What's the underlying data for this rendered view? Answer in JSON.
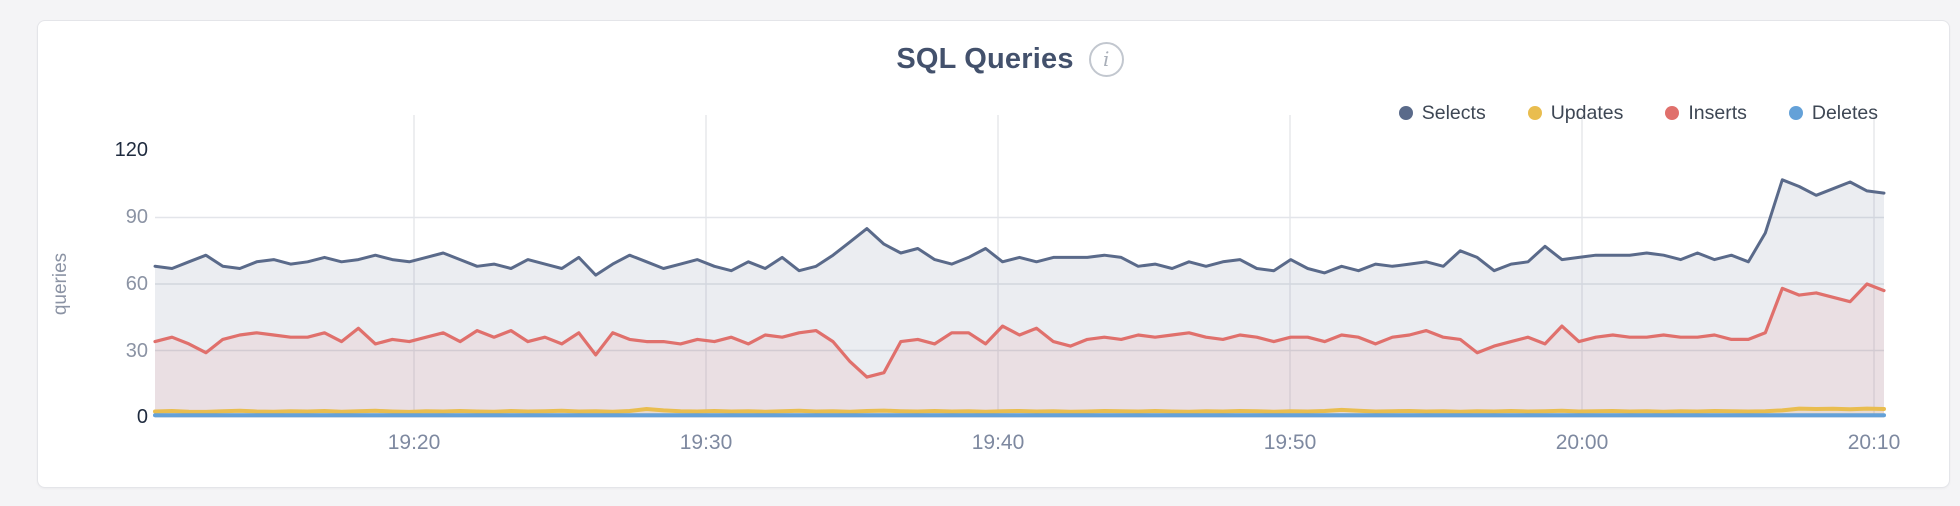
{
  "page": {
    "background": "#f4f4f6",
    "card_background": "#ffffff",
    "card_border": "#e4e5e9"
  },
  "header": {
    "title": "SQL Queries",
    "info_icon": "i"
  },
  "axis_colors": {
    "y_tick_dark": "#1e2a3e",
    "y_tick_gray": "#8b93a4",
    "x_tick": "#7e89a0"
  },
  "chart_data": {
    "type": "area",
    "title": "SQL Queries",
    "ylabel": "queries",
    "ylim": [
      0,
      120
    ],
    "y_ticks": [
      120,
      90,
      60,
      30,
      0
    ],
    "x_ticks": [
      "19:20",
      "19:30",
      "19:40",
      "19:50",
      "20:00",
      "20:10"
    ],
    "x_range": [
      "19:11",
      "20:10"
    ],
    "grid": true,
    "legend_position": "top-right",
    "series": [
      {
        "name": "Selects",
        "color": "#5a6a8a",
        "fill_opacity": 0.12,
        "values": [
          68,
          67,
          70,
          73,
          68,
          67,
          70,
          71,
          69,
          70,
          72,
          70,
          71,
          73,
          71,
          70,
          72,
          74,
          71,
          68,
          69,
          67,
          71,
          69,
          67,
          72,
          64,
          69,
          73,
          70,
          67,
          69,
          71,
          68,
          66,
          70,
          67,
          72,
          66,
          68,
          73,
          79,
          85,
          78,
          74,
          76,
          71,
          69,
          72,
          76,
          70,
          72,
          70,
          72,
          72,
          72,
          73,
          72,
          68,
          69,
          67,
          70,
          68,
          70,
          71,
          67,
          66,
          71,
          67,
          65,
          68,
          66,
          69,
          68,
          69,
          70,
          68,
          75,
          72,
          66,
          69,
          70,
          77,
          71,
          72,
          73,
          73,
          73,
          74,
          73,
          71,
          74,
          71,
          73,
          70,
          83,
          107,
          104,
          100,
          103,
          106,
          102,
          101
        ]
      },
      {
        "name": "Updates",
        "color": "#e9bd4f",
        "fill_opacity": 0.12,
        "values": [
          2.5,
          2.7,
          2.4,
          2.3,
          2.6,
          2.8,
          2.5,
          2.4,
          2.6,
          2.5,
          2.7,
          2.4,
          2.6,
          2.8,
          2.5,
          2.3,
          2.6,
          2.5,
          2.7,
          2.5,
          2.4,
          2.7,
          2.5,
          2.6,
          2.8,
          2.5,
          2.6,
          2.4,
          2.7,
          3.6,
          3.0,
          2.6,
          2.5,
          2.7,
          2.5,
          2.6,
          2.4,
          2.6,
          2.8,
          2.5,
          2.6,
          2.4,
          2.7,
          2.9,
          2.6,
          2.5,
          2.7,
          2.5,
          2.6,
          2.4,
          2.6,
          2.7,
          2.5,
          2.6,
          2.4,
          2.5,
          2.7,
          2.6,
          2.5,
          2.7,
          2.5,
          2.4,
          2.6,
          2.5,
          2.7,
          2.6,
          2.4,
          2.6,
          2.5,
          2.7,
          3.2,
          2.8,
          2.5,
          2.6,
          2.7,
          2.5,
          2.6,
          2.4,
          2.6,
          2.5,
          2.7,
          2.5,
          2.6,
          2.8,
          2.5,
          2.6,
          2.7,
          2.5,
          2.6,
          2.4,
          2.6,
          2.5,
          2.7,
          2.6,
          2.5,
          2.6,
          3.0,
          3.8,
          3.6,
          3.7,
          3.5,
          3.8,
          3.6
        ]
      },
      {
        "name": "Inserts",
        "color": "#e0706c",
        "fill_opacity": 0.1,
        "values": [
          34,
          36,
          33,
          29,
          35,
          37,
          38,
          37,
          36,
          36,
          38,
          34,
          40,
          33,
          35,
          34,
          36,
          38,
          34,
          39,
          36,
          39,
          34,
          36,
          33,
          38,
          28,
          38,
          35,
          34,
          34,
          33,
          35,
          34,
          36,
          33,
          37,
          36,
          38,
          39,
          34,
          25,
          18,
          20,
          34,
          35,
          33,
          38,
          38,
          33,
          41,
          37,
          40,
          34,
          32,
          35,
          36,
          35,
          37,
          36,
          37,
          38,
          36,
          35,
          37,
          36,
          34,
          36,
          36,
          34,
          37,
          36,
          33,
          36,
          37,
          39,
          36,
          35,
          29,
          32,
          34,
          36,
          33,
          41,
          34,
          36,
          37,
          36,
          36,
          37,
          36,
          36,
          37,
          35,
          35,
          38,
          58,
          55,
          56,
          54,
          52,
          60,
          57
        ]
      },
      {
        "name": "Deletes",
        "color": "#64a1d8",
        "fill_opacity": 0.15,
        "values": [
          0.8,
          0.8,
          0.8,
          0.8,
          0.8,
          0.8,
          0.8,
          0.8,
          0.8,
          0.8,
          0.8,
          0.8,
          0.8,
          0.8,
          0.8,
          0.8,
          0.8,
          0.8,
          0.8,
          0.8,
          0.8,
          0.8,
          0.8,
          0.8,
          0.8,
          0.8,
          0.8,
          0.8,
          0.8,
          0.8,
          0.8,
          0.8,
          0.8,
          0.8,
          0.8,
          0.8,
          0.8,
          0.8,
          0.8,
          0.8,
          0.8,
          0.8,
          0.8,
          0.8,
          0.8,
          0.8,
          0.8,
          0.8,
          0.8,
          0.8,
          0.8,
          0.8,
          0.8,
          0.8,
          0.8,
          0.8,
          0.8,
          0.8,
          0.8,
          0.8,
          0.8,
          0.8,
          0.8,
          0.8,
          0.8,
          0.8,
          0.8,
          0.8,
          0.8,
          0.8,
          0.8,
          0.8,
          0.8,
          0.8,
          0.8,
          0.8,
          0.8,
          0.8,
          0.8,
          0.8,
          0.8,
          0.8,
          0.8,
          0.8,
          0.8,
          0.8,
          0.8,
          0.8,
          0.8,
          0.8,
          0.8,
          0.8,
          0.8,
          0.8,
          0.8,
          0.8,
          0.8,
          0.8,
          0.8,
          0.8,
          0.8,
          0.8,
          0.8
        ]
      }
    ]
  }
}
